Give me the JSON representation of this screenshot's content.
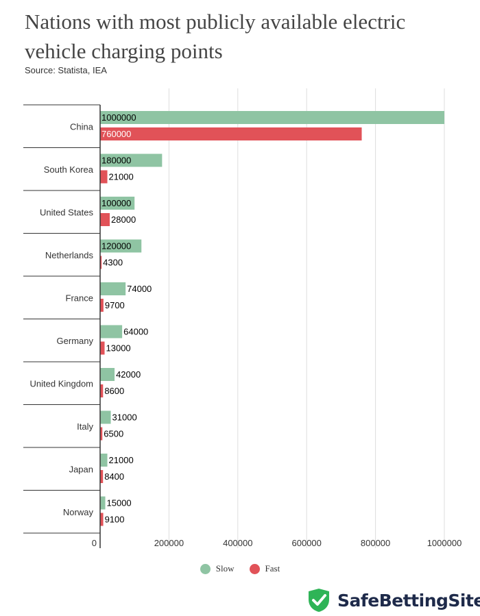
{
  "title": "Nations with most publicly available electric vehicle charging points",
  "source": "Source: Statista, IEA",
  "colors": {
    "slow": "#8fc4a3",
    "fast": "#e15258",
    "grid": "#dddddd",
    "axis": "#333333"
  },
  "legend": {
    "slow": "Slow",
    "fast": "Fast"
  },
  "brand": {
    "name": "SafeBettingSites",
    "icon": "shield-check-icon"
  },
  "chart_data": {
    "type": "bar",
    "orientation": "horizontal",
    "categories": [
      "China",
      "South Korea",
      "United States",
      "Netherlands",
      "France",
      "Germany",
      "United Kingdom",
      "Italy",
      "Japan",
      "Norway"
    ],
    "series": [
      {
        "name": "Slow",
        "values": [
          1000000,
          180000,
          100000,
          120000,
          74000,
          64000,
          42000,
          31000,
          21000,
          15000
        ]
      },
      {
        "name": "Fast",
        "values": [
          760000,
          21000,
          28000,
          4300,
          9700,
          13000,
          8600,
          6500,
          8400,
          9100
        ]
      }
    ],
    "xlim": [
      0,
      1000000
    ],
    "xticks": [
      "0",
      "200000",
      "400000",
      "600000",
      "800000",
      "1000000"
    ],
    "legend_position": "bottom"
  }
}
